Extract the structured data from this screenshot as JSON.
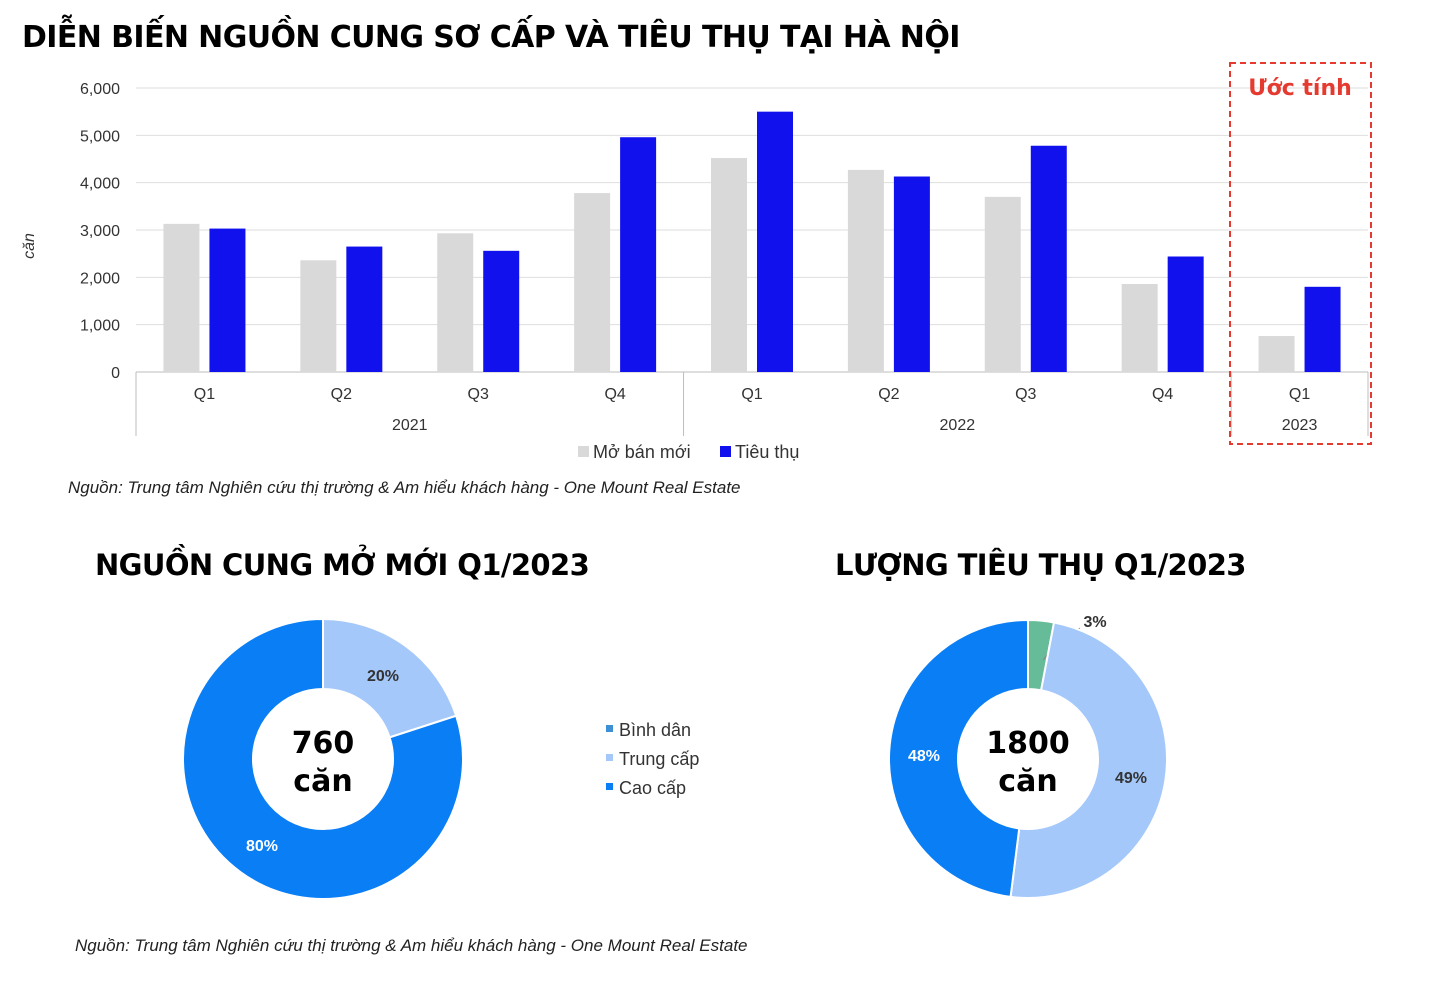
{
  "title": "DIỄN BIẾN NGUỒN CUNG SƠ CẤP VÀ TIÊU THỤ TẠI HÀ NỘI",
  "estimate_label": "Ước tính",
  "source_top": "Nguồn: Trung tâm Nghiên cứu thị trường & Am hiểu khách hàng - One Mount Real Estate",
  "source_bottom": "Nguồn: Trung tâm Nghiên cứu thị trường & Am hiểu khách hàng - One Mount Real Estate",
  "colors": {
    "supply": "#d9d9d9",
    "sales": "#1111ee",
    "estimate_border": "#e53a2f",
    "binh_dan": "#66bb99",
    "trung_cap": "#a4c8fa",
    "cao_cap": "#0a7ef5",
    "legend_binh_dan": "#3d8fd6"
  },
  "chart_data": [
    {
      "type": "bar",
      "ylabel": "căn",
      "ylim": [
        0,
        6000
      ],
      "yticks": [
        "0",
        "1,000",
        "2,000",
        "3,000",
        "4,000",
        "5,000",
        "6,000"
      ],
      "ytick_values": [
        0,
        1000,
        2000,
        3000,
        4000,
        5000,
        6000
      ],
      "categories": [
        "Q1",
        "Q2",
        "Q3",
        "Q4",
        "Q1",
        "Q2",
        "Q3",
        "Q4",
        "Q1"
      ],
      "groups": [
        {
          "label": "2021",
          "count": 4
        },
        {
          "label": "2022",
          "count": 4
        },
        {
          "label": "2023",
          "count": 1
        }
      ],
      "series": [
        {
          "name": "Mở bán mới",
          "values": [
            3130,
            2360,
            2930,
            3780,
            4520,
            4270,
            3700,
            1860,
            760
          ]
        },
        {
          "name": "Tiêu thụ",
          "values": [
            3030,
            2650,
            2560,
            4960,
            5500,
            4130,
            4780,
            2440,
            1800
          ]
        }
      ],
      "grid": true,
      "legend": "bottom"
    },
    {
      "type": "pie",
      "title": "NGUỒN CUNG MỞ MỚI Q1/2023",
      "center_value": "760",
      "center_unit": "căn",
      "slices": [
        {
          "name": "Trung cấp",
          "value": 20,
          "label": "20%"
        },
        {
          "name": "Cao cấp",
          "value": 80,
          "label": "80%"
        }
      ],
      "legend": {
        "placement": "right",
        "entries": [
          "Bình dân",
          "Trung cấp",
          "Cao cấp"
        ]
      }
    },
    {
      "type": "pie",
      "title": "LƯỢNG TIÊU THỤ Q1/2023",
      "center_value": "1800",
      "center_unit": "căn",
      "slices": [
        {
          "name": "Bình dân",
          "value": 3,
          "label": "3%"
        },
        {
          "name": "Trung cấp",
          "value": 49,
          "label": "49%"
        },
        {
          "name": "Cao cấp",
          "value": 48,
          "label": "48%"
        }
      ]
    }
  ]
}
